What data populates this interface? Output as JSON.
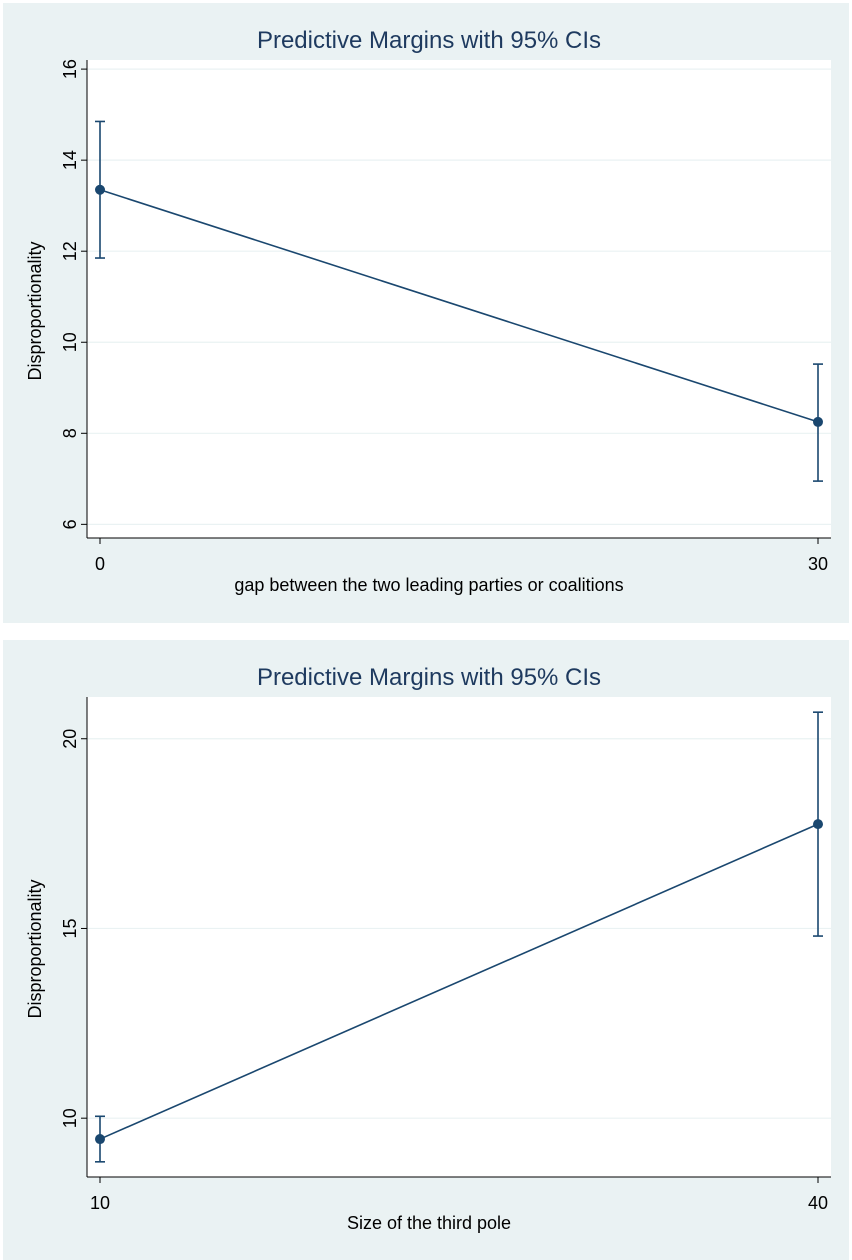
{
  "chart_data": [
    {
      "type": "line",
      "title": "Predictive Margins with 95% CIs",
      "xlabel": "gap between the two leading parties or coalitions",
      "ylabel": "Disproportionality",
      "x": [
        0,
        30
      ],
      "x_ticks": [
        "0",
        "30"
      ],
      "y_ticks": [
        "6",
        "8",
        "10",
        "12",
        "14",
        "16"
      ],
      "xlim": [
        0,
        30
      ],
      "ylim": [
        5.7,
        16.2
      ],
      "series": [
        {
          "values": [
            13.35,
            8.25
          ],
          "ci_lower": [
            11.85,
            6.95
          ],
          "ci_upper": [
            14.85,
            9.52
          ]
        }
      ],
      "grid": true,
      "colors": {
        "line": "#1a476f",
        "grid": "#eaf2f3",
        "background": "#eaf2f3",
        "plot": "#ffffff",
        "title": "#1e3a5f"
      }
    },
    {
      "type": "line",
      "title": "Predictive Margins with 95% CIs",
      "xlabel": "Size of the third pole",
      "ylabel": "Disproportionality",
      "x": [
        10,
        40
      ],
      "x_ticks": [
        "10",
        "40"
      ],
      "y_ticks": [
        "10",
        "15",
        "20"
      ],
      "xlim": [
        10,
        40
      ],
      "ylim": [
        8.45,
        21.1
      ],
      "series": [
        {
          "values": [
            9.45,
            17.75
          ],
          "ci_lower": [
            8.85,
            14.8
          ],
          "ci_upper": [
            10.05,
            20.7
          ]
        }
      ],
      "grid": true,
      "colors": {
        "line": "#1a476f",
        "grid": "#eaf2f3",
        "background": "#eaf2f3",
        "plot": "#ffffff",
        "title": "#1e3a5f"
      }
    }
  ]
}
